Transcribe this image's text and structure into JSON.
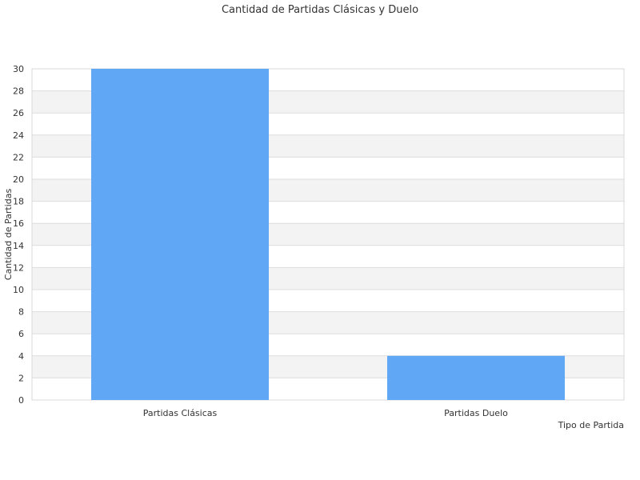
{
  "chart_data": {
    "type": "bar",
    "title": "Cantidad de Partidas Clásicas y Duelo",
    "xlabel": "Tipo de Partida",
    "ylabel": "Cantidad de Partidas",
    "categories": [
      "Partidas Clásicas",
      "Partidas Duelo"
    ],
    "values": [
      30,
      4
    ],
    "ylim": [
      0,
      30
    ],
    "yticks": [
      0,
      2,
      4,
      6,
      8,
      10,
      12,
      14,
      16,
      18,
      20,
      22,
      24,
      26,
      28,
      30
    ],
    "grid": true,
    "legend": "none",
    "colors": {
      "bar": "#60a8f5",
      "band_alt": "#f3f3f3",
      "gridline": "#dddddd",
      "frame": "#d9d9d9"
    }
  }
}
